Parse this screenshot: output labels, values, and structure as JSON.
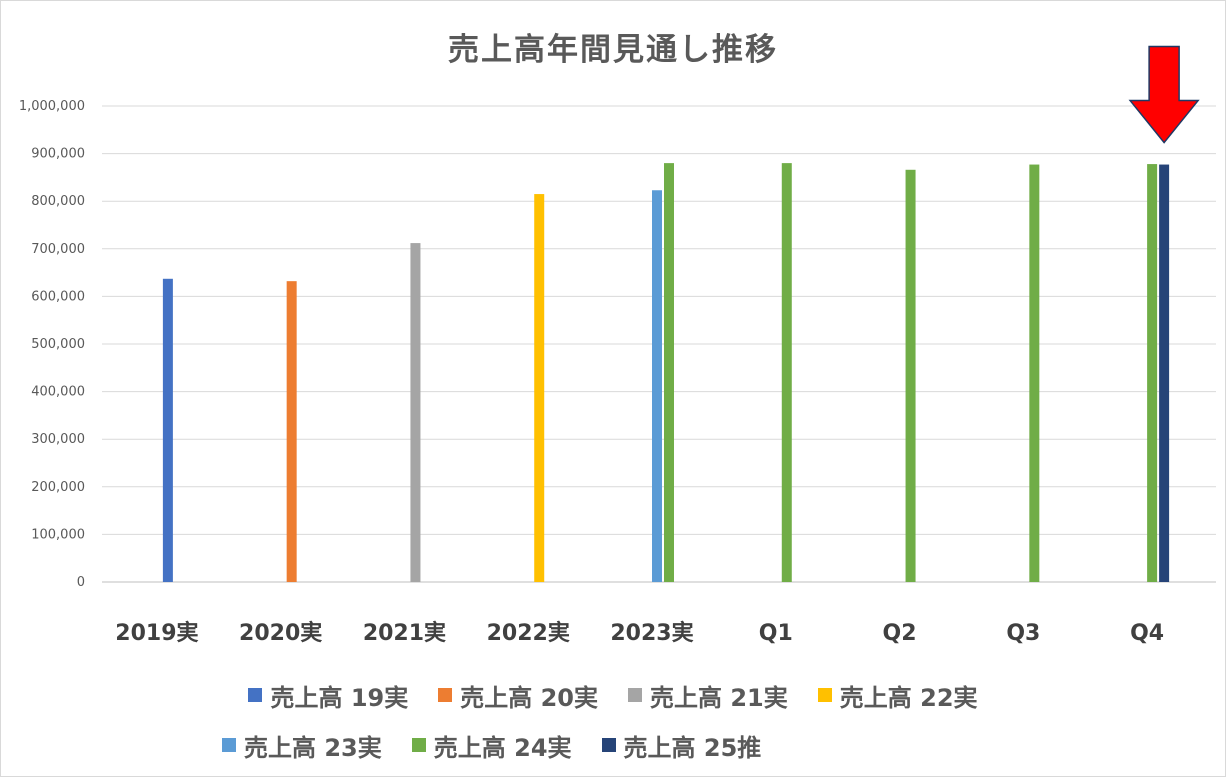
{
  "chart_data": {
    "type": "bar",
    "title": "売上高年間見通し推移",
    "categories": [
      "2019実",
      "2020実",
      "2021実",
      "2022実",
      "2023実",
      "Q1",
      "Q2",
      "Q3",
      "Q4"
    ],
    "ylim": [
      0,
      1000000
    ],
    "yticks": [
      "0",
      "100,000",
      "200,000",
      "300,000",
      "400,000",
      "500,000",
      "600,000",
      "700,000",
      "800,000",
      "900,000",
      "1,000,000"
    ],
    "ytick_values": [
      0,
      100000,
      200000,
      300000,
      400000,
      500000,
      600000,
      700000,
      800000,
      900000,
      1000000
    ],
    "grid": true,
    "legend_position": "bottom",
    "series": [
      {
        "name": "売上高 19実",
        "color": "#4472c4",
        "values": [
          637000,
          null,
          null,
          null,
          null,
          null,
          null,
          null,
          null
        ]
      },
      {
        "name": "売上高 20実",
        "color": "#ed7d31",
        "values": [
          null,
          632000,
          null,
          null,
          null,
          null,
          null,
          null,
          null
        ]
      },
      {
        "name": "売上高 21実",
        "color": "#a5a5a5",
        "values": [
          null,
          null,
          712000,
          null,
          null,
          null,
          null,
          null,
          null
        ]
      },
      {
        "name": "売上高 22実",
        "color": "#ffc000",
        "values": [
          null,
          null,
          null,
          815000,
          null,
          null,
          null,
          null,
          null
        ]
      },
      {
        "name": "売上高 23実",
        "color": "#5b9bd5",
        "values": [
          null,
          null,
          null,
          null,
          823000,
          null,
          null,
          null,
          null
        ]
      },
      {
        "name": "売上高 24実",
        "color": "#70ad47",
        "values": [
          null,
          null,
          null,
          null,
          880000,
          880000,
          866000,
          877000,
          878000
        ]
      },
      {
        "name": "売上高 25推",
        "color": "#264478",
        "values": [
          null,
          null,
          null,
          null,
          null,
          null,
          null,
          null,
          877000
        ]
      }
    ],
    "annotation": {
      "type": "arrow",
      "color": "#ff0000",
      "points_to": "Q4 売上高 25推"
    }
  },
  "colors": {
    "grid": "#d9d9d9",
    "axis": "#bfbfbf",
    "title": "#595959",
    "arrow_fill": "#ff0000",
    "arrow_stroke": "#1f3864"
  },
  "legend_rows": [
    [
      "売上高 19実",
      "売上高 20実",
      "売上高 21実",
      "売上高 22実"
    ],
    [
      "売上高 23実",
      "売上高 24実",
      "売上高 25推"
    ]
  ]
}
